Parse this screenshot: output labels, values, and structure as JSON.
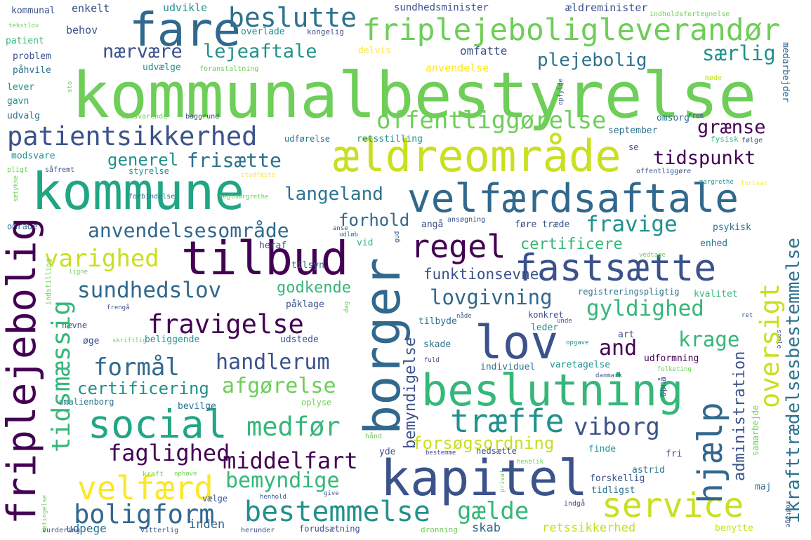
{
  "palette": {
    "dark_purple": "#440154",
    "indigo": "#3b528b",
    "blue": "#31688e",
    "teal": "#21918c",
    "green": "#35b779",
    "lime": "#6ece58",
    "yellowgreen": "#b5de2b",
    "yellow": "#fde725"
  },
  "words": [
    {
      "text": "kommunalbestyrelse",
      "color": "#6ece58"
    },
    {
      "text": "kommune",
      "color": "#21a685"
    },
    {
      "text": "fare",
      "color": "#31688e"
    },
    {
      "text": "beslutte",
      "color": "#2c728e"
    },
    {
      "text": "friplejeboligleverandør",
      "color": "#6ece58"
    },
    {
      "text": "nærvære",
      "color": "#3b528b"
    },
    {
      "text": "lejeaftale",
      "color": "#21918c"
    },
    {
      "text": "særlig",
      "color": "#21918c"
    },
    {
      "text": "plejebolig",
      "color": "#2c728e"
    },
    {
      "text": "ældreområde",
      "color": "#c8e020"
    },
    {
      "text": "velfærdsaftale",
      "color": "#31688e"
    },
    {
      "text": "patientsikkerhed",
      "color": "#3b528b"
    },
    {
      "text": "offentliggørelse",
      "color": "#6ece58"
    },
    {
      "text": "grænse",
      "color": "#440154"
    },
    {
      "text": "tidspunkt",
      "color": "#440154"
    },
    {
      "text": "generel",
      "color": "#21918c"
    },
    {
      "text": "frisætte",
      "color": "#2c728e"
    },
    {
      "text": "langeland",
      "color": "#2c728e"
    },
    {
      "text": "anvendelsesområde",
      "color": "#31688e"
    },
    {
      "text": "forhold",
      "color": "#31688e"
    },
    {
      "text": "fravige",
      "color": "#21918c"
    },
    {
      "text": "regel",
      "color": "#440154"
    },
    {
      "text": "tilbud",
      "color": "#440154"
    },
    {
      "text": "fastsætte",
      "color": "#3b528b"
    },
    {
      "text": "varighed",
      "color": "#c8e020"
    },
    {
      "text": "sundhedslov",
      "color": "#31688e"
    },
    {
      "text": "certificere",
      "color": "#35b779"
    },
    {
      "text": "funktionsevne",
      "color": "#3b528b"
    },
    {
      "text": "lovgivning",
      "color": "#31688e"
    },
    {
      "text": "godkende",
      "color": "#35b779"
    },
    {
      "text": "fravigelse",
      "color": "#440154"
    },
    {
      "text": "lov",
      "color": "#3b528b"
    },
    {
      "text": "gyldighed",
      "color": "#35b779"
    },
    {
      "text": "krage",
      "color": "#35b779"
    },
    {
      "text": "and",
      "color": "#440154"
    },
    {
      "text": "formål",
      "color": "#31688e"
    },
    {
      "text": "handlerum",
      "color": "#3b528b"
    },
    {
      "text": "afgørelse",
      "color": "#6ece58"
    },
    {
      "text": "certificering",
      "color": "#21918c"
    },
    {
      "text": "social",
      "color": "#21a685"
    },
    {
      "text": "medfør",
      "color": "#35b779"
    },
    {
      "text": "træffe",
      "color": "#21918c"
    },
    {
      "text": "viborg",
      "color": "#3b528b"
    },
    {
      "text": "beslutning",
      "color": "#35b779"
    },
    {
      "text": "faglighed",
      "color": "#440154"
    },
    {
      "text": "middelfart",
      "color": "#440154"
    },
    {
      "text": "forsøgsordning",
      "color": "#c8e020"
    },
    {
      "text": "bemyndige",
      "color": "#35b779"
    },
    {
      "text": "velfærd",
      "color": "#fde725"
    },
    {
      "text": "kapitel",
      "color": "#3b528b"
    },
    {
      "text": "bestemmelse",
      "color": "#21918c"
    },
    {
      "text": "boligform",
      "color": "#31688e"
    },
    {
      "text": "gælde",
      "color": "#35b779"
    },
    {
      "text": "service",
      "color": "#c8e020"
    },
    {
      "text": "retssikkerhed",
      "color": "#c8e020"
    },
    {
      "text": "udpege",
      "color": "#2c728e"
    },
    {
      "text": "inden",
      "color": "#31688e"
    },
    {
      "text": "skab",
      "color": "#31688e"
    },
    {
      "text": "omfatte",
      "color": "#3b528b"
    },
    {
      "text": "anvendelse",
      "color": "#fde725"
    },
    {
      "text": "kommunal",
      "color": "#3b528b"
    },
    {
      "text": "enkelt",
      "color": "#3b528b"
    },
    {
      "text": "udvikle",
      "color": "#21918c"
    },
    {
      "text": "sundhedsminister",
      "color": "#3b528b"
    },
    {
      "text": "ældreminister",
      "color": "#3b528b"
    },
    {
      "text": "indholdsfortegnelse",
      "color": "#6ece58"
    },
    {
      "text": "behov",
      "color": "#3b528b"
    },
    {
      "text": "overlade",
      "color": "#21918c"
    },
    {
      "text": "kongelig",
      "color": "#3b528b"
    },
    {
      "text": "delvis",
      "color": "#fde725"
    },
    {
      "text": "patient",
      "color": "#35b779"
    },
    {
      "text": "problem",
      "color": "#3b528b"
    },
    {
      "text": "påhvile",
      "color": "#2c728e"
    },
    {
      "text": "lever",
      "color": "#21918c"
    },
    {
      "text": "gavn",
      "color": "#21918c"
    },
    {
      "text": "udvalg",
      "color": "#2c728e"
    },
    {
      "text": "tekstlov",
      "color": "#6ece58"
    },
    {
      "text": "udvælge",
      "color": "#21918c"
    },
    {
      "text": "foranstaltning",
      "color": "#6ece58"
    },
    {
      "text": "medarbejder",
      "color": "#31688e"
    },
    {
      "text": "møde",
      "color": "#c8e020"
    },
    {
      "text": "tilsvarende",
      "color": "#6ece58"
    },
    {
      "text": "baggrund",
      "color": "#3b528b"
    },
    {
      "text": "omsorg",
      "color": "#2c728e"
    },
    {
      "text": "frem",
      "color": "#3b528b"
    },
    {
      "text": "opfylde",
      "color": "#3b528b"
    },
    {
      "text": "september",
      "color": "#2c728e"
    },
    {
      "text": "udførelse",
      "color": "#2c728e"
    },
    {
      "text": "retsstilling",
      "color": "#21918c"
    },
    {
      "text": "fysisk",
      "color": "#35b779"
    },
    {
      "text": "følge",
      "color": "#3b528b"
    },
    {
      "text": "modsvare",
      "color": "#21918c"
    },
    {
      "text": "se",
      "color": "#3b528b"
    },
    {
      "text": "pligt",
      "color": "#6ece58"
    },
    {
      "text": "såfremt",
      "color": "#3b528b"
    },
    {
      "text": "styrelse",
      "color": "#21918c"
    },
    {
      "text": "stadfæste",
      "color": "#fde725"
    },
    {
      "text": "offentliggøre",
      "color": "#3b528b"
    },
    {
      "text": "margrethe",
      "color": "#21918c"
    },
    {
      "text": "fortsat",
      "color": "#fde725"
    },
    {
      "text": "forbindelse",
      "color": "#2c728e"
    },
    {
      "text": "seglmargrethe",
      "color": "#6ece58"
    },
    {
      "text": "område",
      "color": "#2c728e"
    },
    {
      "text": "anse",
      "color": "#3b528b"
    },
    {
      "text": "udløb",
      "color": "#2c728e"
    },
    {
      "text": "angå",
      "color": "#3b528b"
    },
    {
      "text": "ansøgning",
      "color": "#3b528b"
    },
    {
      "text": "føre træde",
      "color": "#3b528b"
    },
    {
      "text": "psykisk",
      "color": "#2c728e"
    },
    {
      "text": "sætykke",
      "color": "#6ece58"
    },
    {
      "text": "heraf",
      "color": "#3b528b"
    },
    {
      "text": "vid",
      "color": "#35b779"
    },
    {
      "text": "enhed",
      "color": "#2c728e"
    },
    {
      "text": "vedtage",
      "color": "#6ece58"
    },
    {
      "text": "tilsyn",
      "color": "#2c728e"
    },
    {
      "text": "ligne",
      "color": "#6ece58"
    },
    {
      "text": "indstilling",
      "color": "#6ece58"
    },
    {
      "text": "registreringspligtig",
      "color": "#2c728e"
    },
    {
      "text": "frengå",
      "color": "#3b528b"
    },
    {
      "text": "påklage",
      "color": "#3b528b"
    },
    {
      "text": "konkret",
      "color": "#3b528b"
    },
    {
      "text": "kvalitet",
      "color": "#35b779"
    },
    {
      "text": "ret",
      "color": "#3b528b"
    },
    {
      "text": "nævne",
      "color": "#3b528b"
    },
    {
      "text": "tilbyde",
      "color": "#2c728e"
    },
    {
      "text": "unde",
      "color": "#3b528b"
    },
    {
      "text": "dag",
      "color": "#6ece58"
    },
    {
      "text": "nåde",
      "color": "#3b528b"
    },
    {
      "text": "leder",
      "color": "#21918c"
    },
    {
      "text": "art",
      "color": "#3b528b"
    },
    {
      "text": "øge",
      "color": "#3b528b"
    },
    {
      "text": "skriftlig",
      "color": "#6ece58"
    },
    {
      "text": "beliggende",
      "color": "#21918c"
    },
    {
      "text": "udstede",
      "color": "#3b528b"
    },
    {
      "text": "skade",
      "color": "#2c728e"
    },
    {
      "text": "opgave",
      "color": "#21918c"
    },
    {
      "text": "samle",
      "color": "#3b528b"
    },
    {
      "text": "udformning",
      "color": "#440154"
    },
    {
      "text": "fuld",
      "color": "#3b528b"
    },
    {
      "text": "individuel",
      "color": "#2c728e"
    },
    {
      "text": "varetagelse",
      "color": "#21918c"
    },
    {
      "text": "folketing",
      "color": "#6ece58"
    },
    {
      "text": "amalienborg",
      "color": "#2c728e"
    },
    {
      "text": "bevilge",
      "color": "#2c728e"
    },
    {
      "text": "oplyse",
      "color": "#6ece58"
    },
    {
      "text": "opnå",
      "color": "#3b528b"
    },
    {
      "text": "danmark",
      "color": "#3b528b"
    },
    {
      "text": "administration",
      "color": "#3b528b"
    },
    {
      "text": "samarbejde",
      "color": "#6ece58"
    },
    {
      "text": "hånd",
      "color": "#6ece58"
    },
    {
      "text": "yde",
      "color": "#3b528b"
    },
    {
      "text": "finde",
      "color": "#21918c"
    },
    {
      "text": "fri",
      "color": "#3b528b"
    },
    {
      "text": "bemyndigelse",
      "color": "#3b528b"
    },
    {
      "text": "nedsætte",
      "color": "#3b528b"
    },
    {
      "text": "bestemme",
      "color": "#3b528b"
    },
    {
      "text": "henblik",
      "color": "#6ece58"
    },
    {
      "text": "astrid",
      "color": "#2c728e"
    },
    {
      "text": "privat",
      "color": "#6ece58"
    },
    {
      "text": "forskellig",
      "color": "#3b528b"
    },
    {
      "text": "tidligst",
      "color": "#2c728e"
    },
    {
      "text": "maj",
      "color": "#2c728e"
    },
    {
      "text": "modtage",
      "color": "#3b528b"
    },
    {
      "text": "kraft",
      "color": "#6ece58"
    },
    {
      "text": "ophøve",
      "color": "#6ece58"
    },
    {
      "text": "betingelse",
      "color": "#6ece58"
    },
    {
      "text": "vælge",
      "color": "#3b528b"
    },
    {
      "text": "henhold",
      "color": "#3b528b"
    },
    {
      "text": "give",
      "color": "#3b528b"
    },
    {
      "text": "indgå",
      "color": "#3b528b"
    },
    {
      "text": "vurdering",
      "color": "#3b528b"
    },
    {
      "text": "vitterlig",
      "color": "#3b528b"
    },
    {
      "text": "herunder",
      "color": "#3b528b"
    },
    {
      "text": "forudsætning",
      "color": "#3b528b"
    },
    {
      "text": "dronning",
      "color": "#6ece58"
    },
    {
      "text": "benytte",
      "color": "#c8e020"
    },
    {
      "text": "friplejebolig",
      "color": "#440154"
    },
    {
      "text": "tidsmæssig",
      "color": "#35b779"
    },
    {
      "text": "borger",
      "color": "#31688e"
    },
    {
      "text": "hjælp",
      "color": "#31688e"
    },
    {
      "text": "oversigt",
      "color": "#c8e020"
    },
    {
      "text": "ikrafttrædelsesbestemmelse",
      "color": "#2c728e"
    },
    {
      "text": "sto",
      "color": "#6ece58"
    },
    {
      "text": "gud",
      "color": "#3b528b"
    }
  ]
}
